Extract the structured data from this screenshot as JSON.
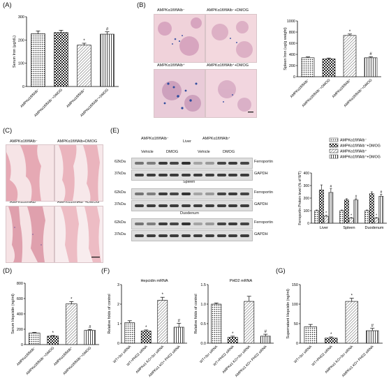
{
  "panels": {
    "A": "(A)",
    "B": "(B)",
    "C": "(C)",
    "D": "(D)",
    "E": "(E)",
    "F": "(F)",
    "G": "(G)"
  },
  "colors": {
    "bar_fill": "#ffffff",
    "bar_stroke": "#222222",
    "histo_bg": "#f2d9dc",
    "histo_stain": "#b8578a",
    "blot_band": "#2b2b2b"
  },
  "charts": {
    "A": {
      "type": "bar",
      "ylabel": "Serum Iron (μg/dL)",
      "ylim": [
        0,
        300
      ],
      "ticks": [
        "0",
        "100",
        "200",
        "300"
      ],
      "categories": [
        "AMPKα1fl/flAlb⁻",
        "AMPKα1fl/flAlb⁻+DMOG",
        "AMPKα1fl/flAlb⁺",
        "AMPKα1fl/flAlb⁺+DMOG"
      ],
      "patterns": [
        "dots",
        "checker",
        "hatch",
        "stripe"
      ],
      "values": [
        227,
        232,
        178,
        225
      ],
      "errors": [
        12,
        10,
        8,
        10
      ],
      "sig": [
        "",
        "",
        "*",
        "#"
      ]
    },
    "B": {
      "type": "bar",
      "ylabel": "Spleen Iron (ug/g weight)",
      "ylim": [
        0,
        1000
      ],
      "ticks": [
        "0",
        "200",
        "400",
        "600",
        "800",
        "1000"
      ],
      "categories": [
        "AMPKα1fl/flAlb⁻",
        "AMPKα1fl/flAlb⁻+DMOG",
        "AMPKα1fl/flAlb⁺",
        "AMPKα1fl/flAlb⁺+DMOG"
      ],
      "patterns": [
        "dots",
        "checker",
        "hatch",
        "stripe"
      ],
      "values": [
        340,
        320,
        740,
        340
      ],
      "errors": [
        15,
        15,
        25,
        20
      ],
      "sig": [
        "",
        "",
        "*",
        "#"
      ]
    },
    "D": {
      "type": "bar",
      "ylabel": "Serum Hepcidin (ng/ml)",
      "ylim": [
        0,
        800
      ],
      "ticks": [
        "0",
        "200",
        "400",
        "600",
        "800"
      ],
      "categories": [
        "AMPKα1fl/flAlb⁻",
        "AMPKα1fl/flAlb⁻+DMOG",
        "AMPKα1fl/flAlb⁺",
        "AMPKα1fl/flAlb⁺+DMOG"
      ],
      "patterns": [
        "dots",
        "checker",
        "hatch",
        "stripe"
      ],
      "values": [
        150,
        110,
        530,
        185
      ],
      "errors": [
        8,
        8,
        30,
        12
      ],
      "sig": [
        "",
        "*",
        "*",
        "#"
      ]
    },
    "E": {
      "type": "bar",
      "ylabel": "Ferroportin Protein level (% of WT)",
      "ylim": [
        0,
        400
      ],
      "ticks": [
        "0",
        "100",
        "200",
        "300",
        "400"
      ],
      "groups": [
        "Liver",
        "Spleen",
        "Duodenum"
      ],
      "series": [
        {
          "name": "AMPKα1fl/flAlb⁻",
          "values": [
            100,
            100,
            100
          ]
        },
        {
          "name": "AMPKα1fl/flAlb⁻+DMOG",
          "values": [
            265,
            185,
            235
          ]
        },
        {
          "name": "AMPKα1fl/flAlb⁺",
          "values": [
            55,
            40,
            40
          ]
        },
        {
          "name": "AMPKα1fl/flAlb⁺+DMOG",
          "values": [
            245,
            185,
            215
          ]
        }
      ],
      "errors": [
        [
          5,
          5,
          5
        ],
        [
          40,
          10,
          15
        ],
        [
          8,
          5,
          5
        ],
        [
          30,
          10,
          15
        ]
      ],
      "sig": [
        [
          "",
          "",
          "*",
          "#"
        ],
        [
          "",
          "",
          "*",
          "#"
        ],
        [
          "",
          "",
          "*",
          "#"
        ]
      ]
    },
    "F1": {
      "type": "bar",
      "title": "Hepcidin mRNA",
      "ylabel": "Relative folds of control",
      "ylim": [
        0,
        3
      ],
      "ticks": [
        "0",
        "1",
        "2",
        "3"
      ],
      "categories": [
        "WT+Scr siRNA",
        "WT+PHD2 siRNA",
        "AMPKα1 KO+Scr siRNA",
        "AMPKα1 KO+ PHD2 siRNA"
      ],
      "patterns": [
        "dots",
        "checker",
        "hatch",
        "stripe"
      ],
      "values": [
        1.05,
        0.62,
        2.2,
        0.82
      ],
      "errors": [
        0.1,
        0.06,
        0.15,
        0.2
      ],
      "sig": [
        "",
        "*",
        "*",
        "#"
      ]
    },
    "F2": {
      "type": "bar",
      "title": "PHD2 mRNA",
      "ylabel": "Relative folds of control",
      "ylim": [
        0,
        1.5
      ],
      "ticks": [
        "0.0",
        "0.5",
        "1.0",
        "1.5"
      ],
      "categories": [
        "WT+Scr siRNA",
        "WT+PHD2 siRNA",
        "AMPKα1 KO+Scr siRNA",
        "AMPKα1 KO+ PHD2 siRNA"
      ],
      "patterns": [
        "dots",
        "checker",
        "hatch",
        "stripe"
      ],
      "values": [
        1.0,
        0.15,
        1.07,
        0.18
      ],
      "errors": [
        0.03,
        0.03,
        0.13,
        0.05
      ],
      "sig": [
        "",
        "*",
        "",
        "#"
      ]
    },
    "G": {
      "type": "bar",
      "ylabel": "Supernatant Hepcidin (ng/ml)",
      "ylim": [
        0,
        150
      ],
      "ticks": [
        "0",
        "50",
        "100",
        "150"
      ],
      "categories": [
        "WT+Scr siRNA",
        "WT+PHD2 siRNA",
        "AMPKα1 KO+Scr siRNA",
        "AMPKα1 KO+ PHD2 siRNA"
      ],
      "patterns": [
        "dots",
        "checker",
        "hatch",
        "stripe"
      ],
      "values": [
        42,
        13,
        107,
        32
      ],
      "errors": [
        6,
        3,
        8,
        6
      ],
      "sig": [
        "",
        "*",
        "*",
        "#"
      ]
    }
  },
  "histology_B": {
    "captions": [
      "AMPKα1fl/flAlb⁻",
      "AMPKα1fl/flAlb⁻+DMOG",
      "AMPKα1fl/flAlb⁺",
      "AMPKα1fl/flAlb⁺+DMOG"
    ]
  },
  "histology_C": {
    "captions": [
      "AMPKα1fl/flAlb⁻",
      "AMPKα1fl/flAlb+DMOG",
      "AMPKα1fl/flAlb⁺",
      "AMPKα1fl/flAlb⁺+DMOG"
    ]
  },
  "blot": {
    "group1": "AMPKα1fl/flAlb⁻",
    "group2": "AMPKα1fl/flAlb⁺",
    "tissue_top": "Liver",
    "vehicle1": "Vehicle",
    "dmog1": "DMOG",
    "vehicle2": "Vehicle",
    "dmog2": "DMOG",
    "rows": [
      {
        "kda": "62kDa",
        "protein": "Ferroportin"
      },
      {
        "kda": "37kDa",
        "protein": "GAPDH"
      },
      {
        "kda": "62kDa",
        "protein": "Ferroportin"
      },
      {
        "kda": "37kDa",
        "protein": "GAPDH"
      },
      {
        "kda": "62kDa",
        "protein": "Ferroportin"
      },
      {
        "kda": "37kDa",
        "protein": "GAPDH"
      }
    ],
    "tissue_spleen": "Spleen",
    "tissue_duodenum": "Duodenum"
  }
}
